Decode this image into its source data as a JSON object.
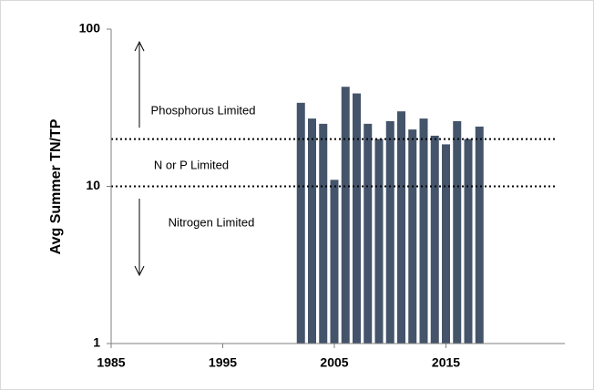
{
  "chart_data": {
    "type": "bar",
    "y_label": "Avg Summer TN/TP",
    "log_y": true,
    "x": [
      2002,
      2003,
      2004,
      2005,
      2006,
      2007,
      2008,
      2009,
      2010,
      2011,
      2012,
      2013,
      2014,
      2015,
      2016,
      2017,
      2018
    ],
    "values": [
      34,
      27,
      25,
      11,
      43,
      39,
      25,
      20,
      26,
      30,
      23,
      27,
      21,
      18.5,
      26,
      20,
      24
    ],
    "color": "#44546a",
    "xlim": [
      1985,
      2025
    ],
    "xticks": [
      1985,
      1995,
      2005,
      2015
    ],
    "ylim": [
      1,
      100
    ],
    "yticks": [
      1,
      10,
      100
    ],
    "hlines": [
      20,
      10
    ],
    "annotations": [
      "Phosphorus Limited",
      "N or P Limited",
      "Nitrogen Limited"
    ]
  }
}
